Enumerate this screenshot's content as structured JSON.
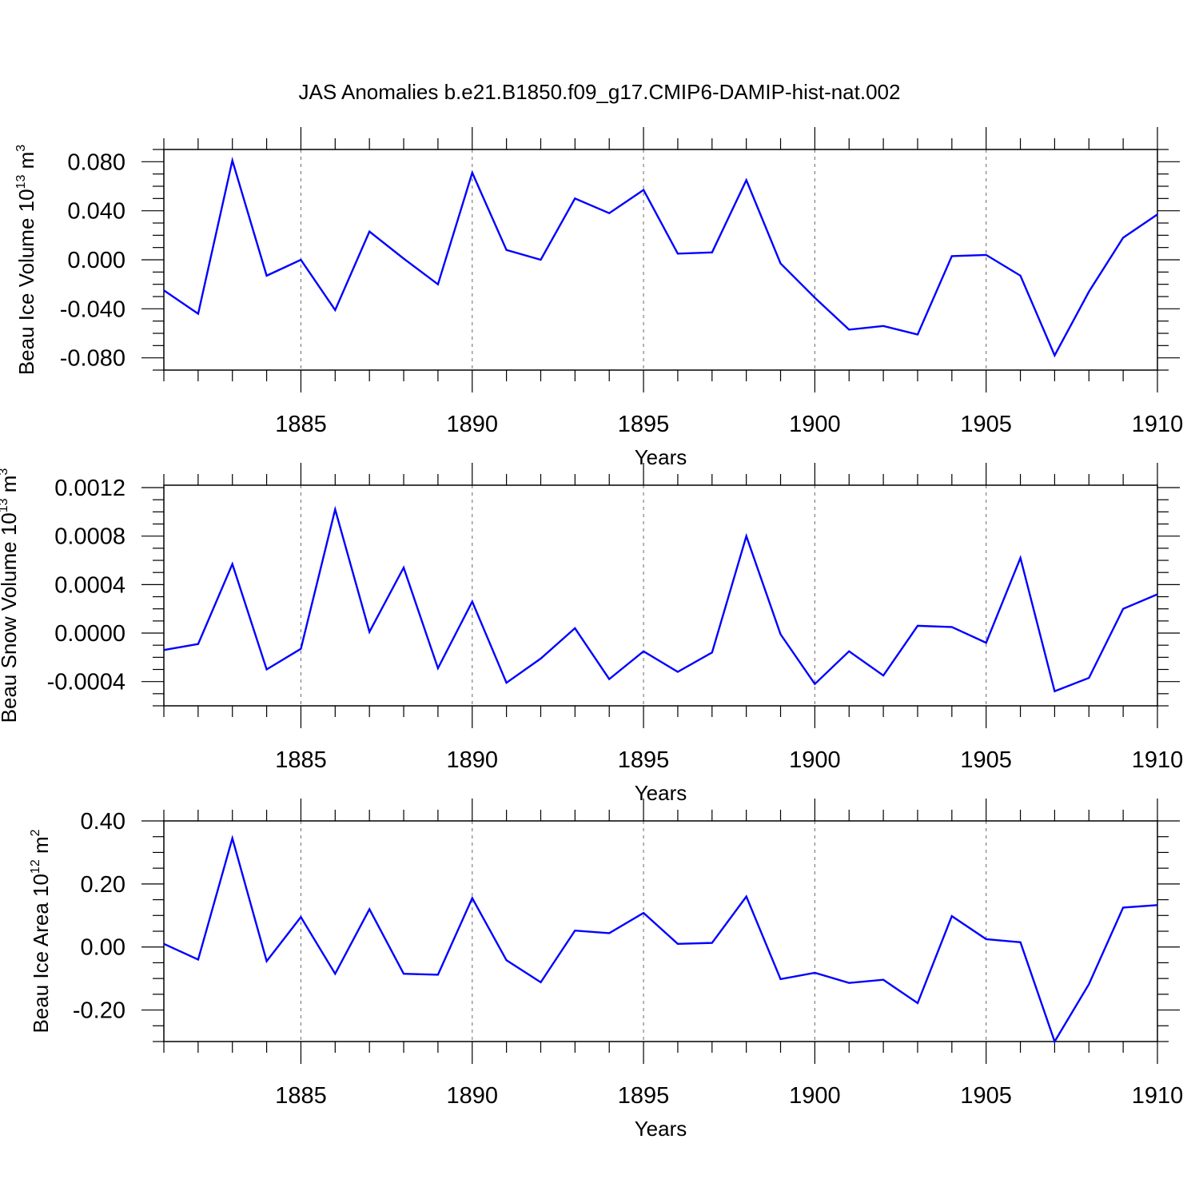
{
  "title": "JAS Anomalies b.e21.B1850.f09_g17.CMIP6-DAMIP-hist-nat.002",
  "colors": {
    "line": "#0000ff",
    "axis": "#000000",
    "grid": "#808080"
  },
  "chart_data": [
    {
      "type": "line",
      "name": "ice-volume",
      "ylabel_text": "Beau Ice Volume 10",
      "ylabel_exp": "13",
      "ylabel_unit": " m",
      "ylabel_unit_exp": "3",
      "xlabel": "Years",
      "xlim": [
        1881,
        1910
      ],
      "ylim": [
        -0.09,
        0.09
      ],
      "xticks": [
        1885,
        1890,
        1895,
        1900,
        1905,
        1910
      ],
      "xtick_labels": [
        "1885",
        "1890",
        "1895",
        "1900",
        "1905",
        "1910"
      ],
      "yticks": [
        -0.08,
        -0.04,
        0.0,
        0.04,
        0.08
      ],
      "ytick_labels": [
        "-0.080",
        "-0.040",
        "0.000",
        "0.040",
        "0.080"
      ],
      "yminor_step": 0.01,
      "x": [
        1881,
        1882,
        1883,
        1884,
        1885,
        1886,
        1887,
        1888,
        1889,
        1890,
        1891,
        1892,
        1893,
        1894,
        1895,
        1896,
        1897,
        1898,
        1899,
        1900,
        1901,
        1902,
        1903,
        1904,
        1905,
        1906,
        1907,
        1908,
        1909,
        1910
      ],
      "series": [
        {
          "name": "Beau Ice Volume",
          "values": [
            -0.025,
            -0.044,
            0.081,
            -0.013,
            0.0,
            -0.041,
            0.023,
            0.001,
            -0.02,
            0.071,
            0.008,
            0.0,
            0.05,
            0.038,
            0.057,
            0.005,
            0.006,
            0.065,
            -0.003,
            -0.031,
            -0.057,
            -0.054,
            -0.061,
            0.003,
            0.004,
            -0.013,
            -0.078,
            -0.026,
            0.018,
            0.037
          ]
        }
      ]
    },
    {
      "type": "line",
      "name": "snow-volume",
      "ylabel_text": "Beau Snow Volume 10",
      "ylabel_exp": "13",
      "ylabel_unit": " m",
      "ylabel_unit_exp": "3",
      "xlabel": "Years",
      "xlim": [
        1881,
        1910
      ],
      "ylim": [
        -0.0006,
        0.00122
      ],
      "xticks": [
        1885,
        1890,
        1895,
        1900,
        1905,
        1910
      ],
      "xtick_labels": [
        "1885",
        "1890",
        "1895",
        "1900",
        "1905",
        "1910"
      ],
      "yticks": [
        -0.0004,
        0.0,
        0.0004,
        0.0008,
        0.0012
      ],
      "ytick_labels": [
        "-0.0004",
        "0.0000",
        "0.0004",
        "0.0008",
        "0.0012"
      ],
      "yminor_step": 0.0001,
      "x": [
        1881,
        1882,
        1883,
        1884,
        1885,
        1886,
        1887,
        1888,
        1889,
        1890,
        1891,
        1892,
        1893,
        1894,
        1895,
        1896,
        1897,
        1898,
        1899,
        1900,
        1901,
        1902,
        1903,
        1904,
        1905,
        1906,
        1907,
        1908,
        1909,
        1910
      ],
      "series": [
        {
          "name": "Beau Snow Volume",
          "values": [
            -0.00014,
            -9e-05,
            0.00057,
            -0.0003,
            -0.00013,
            0.00102,
            1e-05,
            0.00054,
            -0.00029,
            0.00026,
            -0.00041,
            -0.00021,
            4e-05,
            -0.00038,
            -0.00015,
            -0.00032,
            -0.00016,
            0.0008,
            -1e-05,
            -0.00042,
            -0.00015,
            -0.00035,
            6e-05,
            5e-05,
            -8e-05,
            0.00062,
            -0.00048,
            -0.00037,
            0.0002,
            0.00032
          ]
        }
      ]
    },
    {
      "type": "line",
      "name": "ice-area",
      "ylabel_text": "Beau Ice Area 10",
      "ylabel_exp": "12",
      "ylabel_unit": " m",
      "ylabel_unit_exp": "2",
      "xlabel": "Years",
      "xlim": [
        1881,
        1910
      ],
      "ylim": [
        -0.3,
        0.4
      ],
      "xticks": [
        1885,
        1890,
        1895,
        1900,
        1905,
        1910
      ],
      "xtick_labels": [
        "1885",
        "1890",
        "1895",
        "1900",
        "1905",
        "1910"
      ],
      "yticks": [
        -0.2,
        0.0,
        0.2,
        0.4
      ],
      "ytick_labels": [
        "-0.20",
        "0.00",
        "0.20",
        "0.40"
      ],
      "yminor_step": 0.05,
      "x": [
        1881,
        1882,
        1883,
        1884,
        1885,
        1886,
        1887,
        1888,
        1889,
        1890,
        1891,
        1892,
        1893,
        1894,
        1895,
        1896,
        1897,
        1898,
        1899,
        1900,
        1901,
        1902,
        1903,
        1904,
        1905,
        1906,
        1907,
        1908,
        1909,
        1910
      ],
      "series": [
        {
          "name": "Beau Ice Area",
          "values": [
            0.01,
            -0.04,
            0.345,
            -0.045,
            0.095,
            -0.085,
            0.12,
            -0.085,
            -0.088,
            0.155,
            -0.042,
            -0.112,
            0.052,
            0.044,
            0.108,
            0.01,
            0.013,
            0.16,
            -0.102,
            -0.082,
            -0.114,
            -0.104,
            -0.178,
            0.098,
            0.025,
            0.015,
            -0.3,
            -0.118,
            0.125,
            0.133
          ]
        }
      ]
    }
  ]
}
